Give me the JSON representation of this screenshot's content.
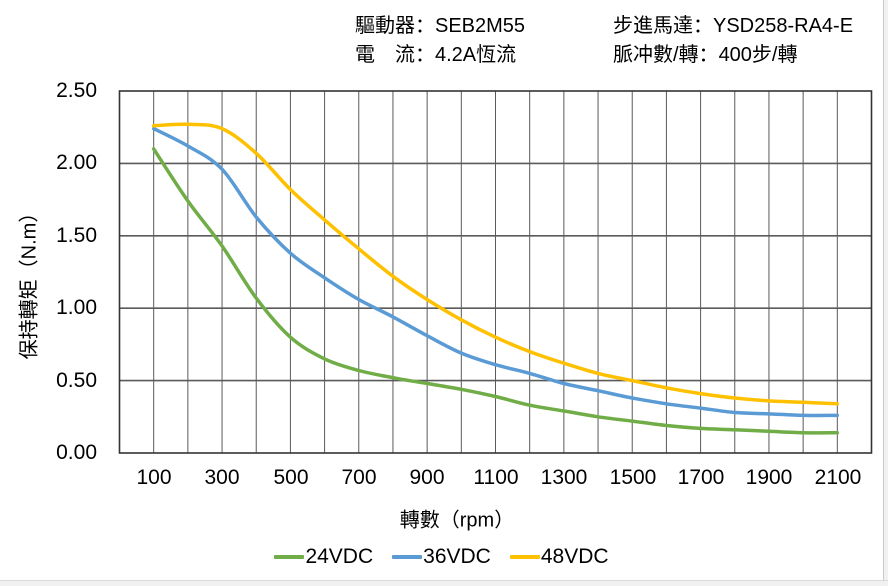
{
  "header": {
    "col1": [
      {
        "label": "驅動器：",
        "value": "SEB2M55"
      },
      {
        "label": "電　流：",
        "value": "4.2A恆流"
      }
    ],
    "col2": [
      {
        "label": "步進馬達：",
        "value": "YSD258-RA4-E"
      },
      {
        "label": "脈冲數/轉：",
        "value": "400步/轉"
      }
    ]
  },
  "chart_data": {
    "type": "line",
    "title": "",
    "xlabel": "轉數（rpm）",
    "ylabel": "保持轉矩（N.m）",
    "xlim": [
      0,
      2200
    ],
    "ylim": [
      0,
      2.5
    ],
    "grid": "on, vertical every 100 rpm, horizontal every 0.5 N.m",
    "legend_position": "bottom-center",
    "xticks": [
      "100",
      "300",
      "500",
      "700",
      "900",
      "1100",
      "1300",
      "1500",
      "1700",
      "1900",
      "2100"
    ],
    "yticks": [
      "2.50",
      "2.00",
      "1.50",
      "1.00",
      "0.50",
      "0.00"
    ],
    "x": [
      100,
      200,
      300,
      400,
      500,
      600,
      700,
      800,
      900,
      1000,
      1100,
      1200,
      1300,
      1400,
      1500,
      1600,
      1700,
      1800,
      1900,
      2000,
      2100
    ],
    "series": [
      {
        "name": "24VDC",
        "color": "#70AD47",
        "values": [
          2.1,
          1.74,
          1.43,
          1.07,
          0.8,
          0.65,
          0.57,
          0.52,
          0.48,
          0.44,
          0.39,
          0.33,
          0.29,
          0.25,
          0.22,
          0.19,
          0.17,
          0.16,
          0.15,
          0.14,
          0.14
        ]
      },
      {
        "name": "36VDC",
        "color": "#5B9BD5",
        "values": [
          2.24,
          2.12,
          1.96,
          1.63,
          1.38,
          1.21,
          1.06,
          0.94,
          0.81,
          0.69,
          0.61,
          0.55,
          0.48,
          0.43,
          0.38,
          0.34,
          0.31,
          0.28,
          0.27,
          0.26,
          0.26
        ]
      },
      {
        "name": "48VDC",
        "color": "#FFC000",
        "values": [
          2.26,
          2.27,
          2.24,
          2.07,
          1.82,
          1.61,
          1.41,
          1.22,
          1.06,
          0.92,
          0.8,
          0.7,
          0.62,
          0.55,
          0.5,
          0.45,
          0.41,
          0.38,
          0.36,
          0.35,
          0.34
        ]
      }
    ]
  },
  "legend": {
    "items": [
      {
        "label": "24VDC",
        "color": "#70AD47"
      },
      {
        "label": "36VDC",
        "color": "#5B9BD5"
      },
      {
        "label": "48VDC",
        "color": "#FFC000"
      }
    ]
  },
  "colors": {
    "gridline": "#5a5a5a",
    "plot_border": "#333333",
    "text": "#000000",
    "background": "#ffffff"
  }
}
